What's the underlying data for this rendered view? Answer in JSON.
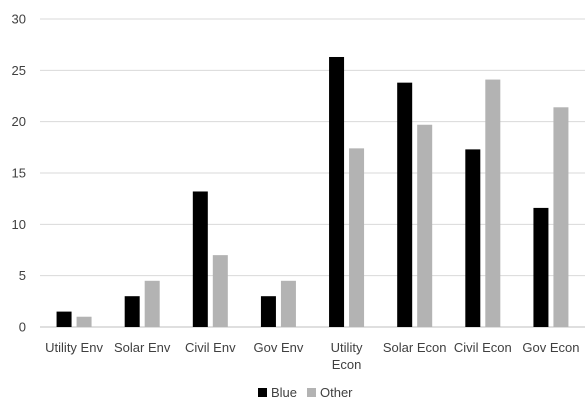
{
  "chart_data": {
    "type": "bar",
    "categories": [
      [
        "Utility Env"
      ],
      [
        "Solar Env"
      ],
      [
        "Civil Env"
      ],
      [
        "Gov Env"
      ],
      [
        "Utility",
        "Econ"
      ],
      [
        "Solar Econ"
      ],
      [
        "Civil Econ"
      ],
      [
        "Gov Econ"
      ]
    ],
    "series": [
      {
        "name": "Blue",
        "color": "#000000",
        "values": [
          1.5,
          3.0,
          13.2,
          3.0,
          26.3,
          23.8,
          17.3,
          11.6
        ]
      },
      {
        "name": "Other",
        "color": "#b3b3b3",
        "values": [
          1.0,
          4.5,
          7.0,
          4.5,
          17.4,
          19.7,
          24.1,
          21.4
        ]
      }
    ],
    "ylim": [
      0,
      30
    ],
    "yticks": [
      "0",
      "5",
      "10",
      "15",
      "20",
      "25",
      "30"
    ],
    "grid": true,
    "legend": "bottom-center",
    "title": "",
    "xlabel": "",
    "ylabel": ""
  }
}
